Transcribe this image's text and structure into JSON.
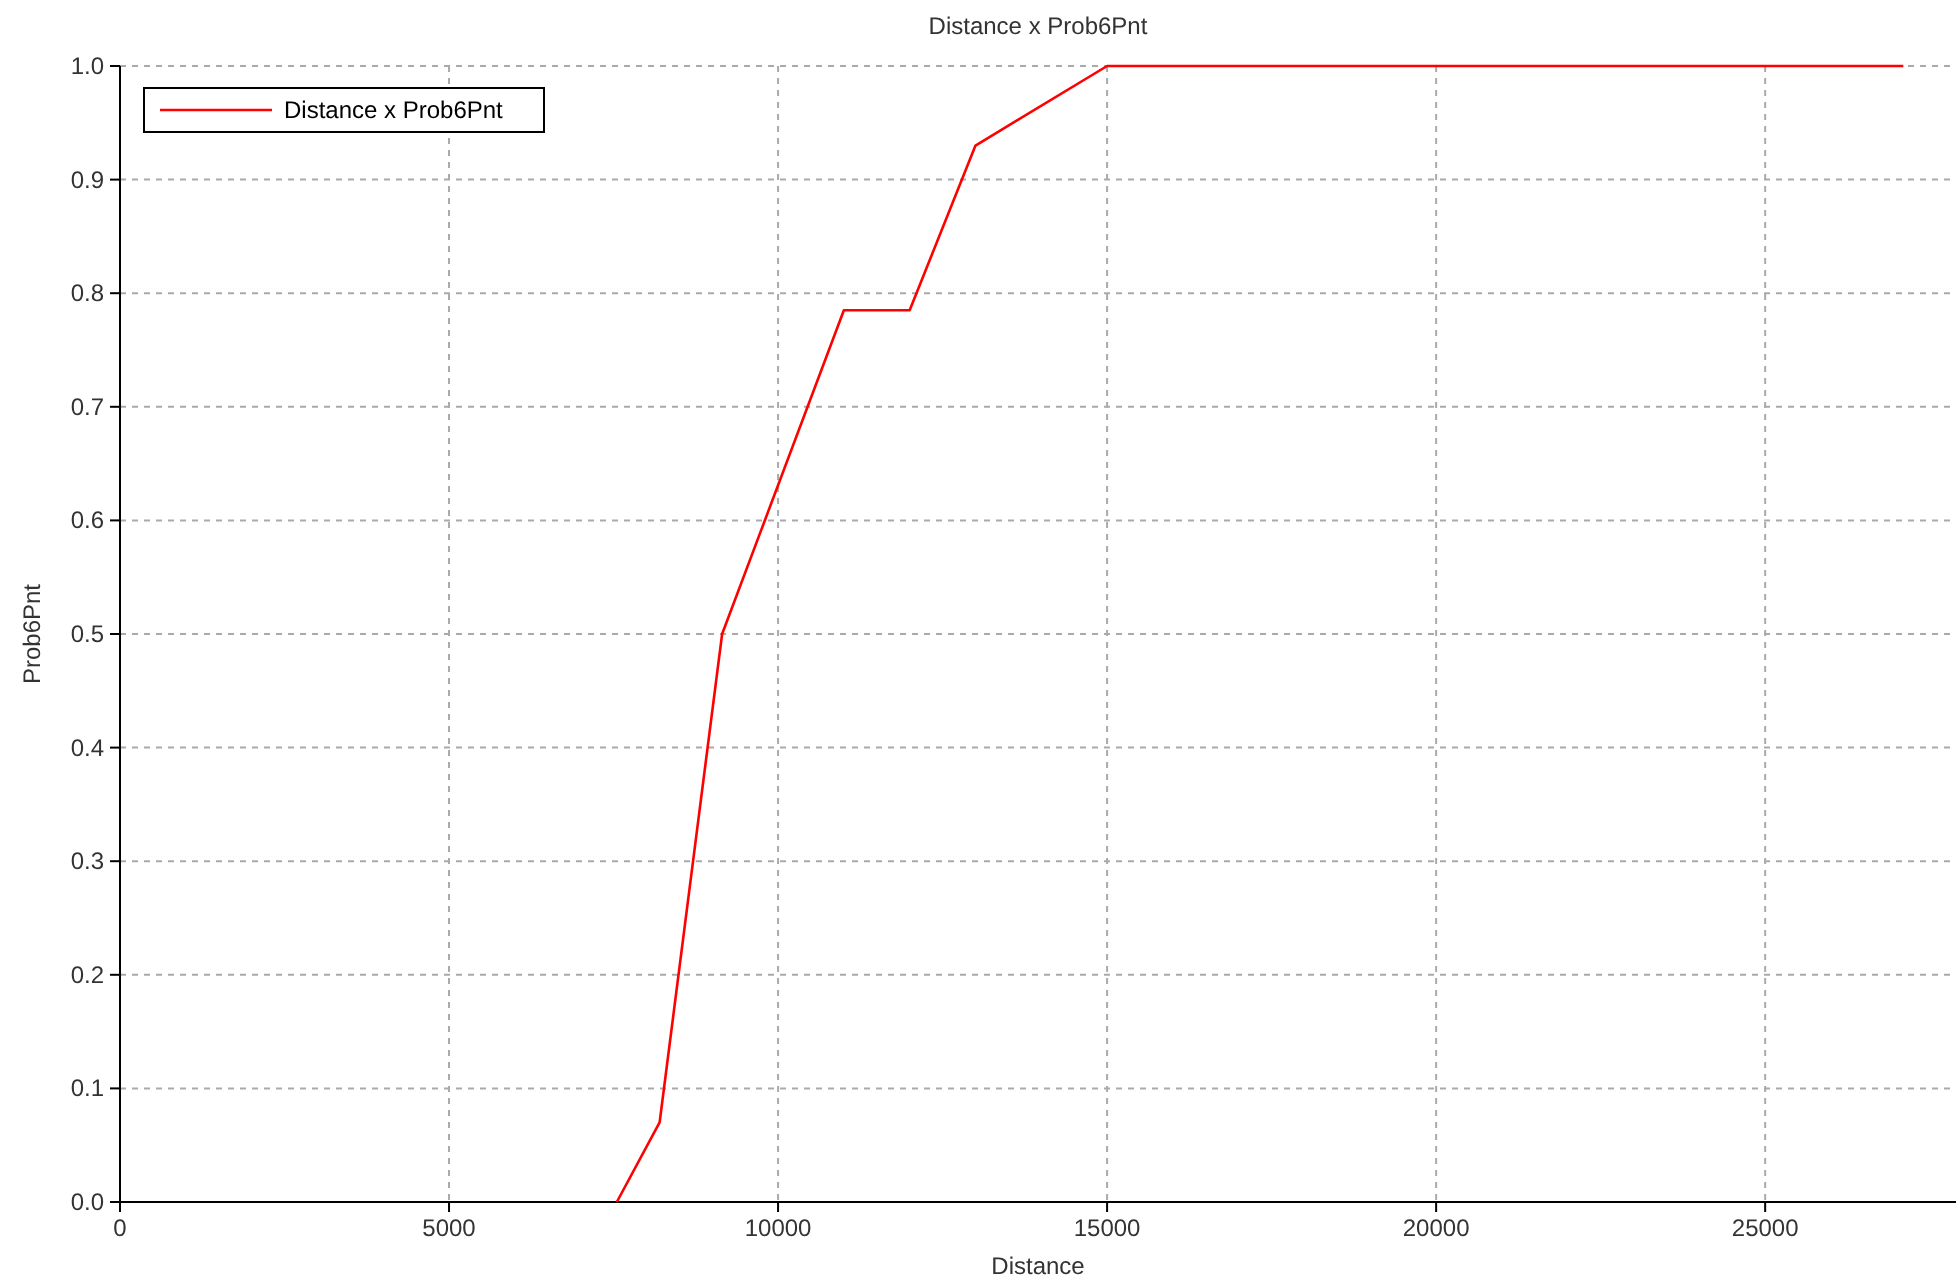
{
  "chart_data": {
    "type": "line",
    "title": "Distance x Prob6Pnt",
    "xlabel": "Distance",
    "ylabel": "Prob6Pnt",
    "x": [
      7550,
      8200,
      9150,
      11000,
      12000,
      13000,
      15000,
      27100
    ],
    "series": [
      {
        "name": "Distance x Prob6Pnt",
        "color": "#ff0000",
        "values": [
          0,
          0.07,
          0.5,
          0.785,
          0.785,
          0.93,
          1,
          1
        ]
      }
    ],
    "xlim": [
      0,
      27900
    ],
    "xticks": [
      0,
      5000,
      10000,
      15000,
      20000,
      25000
    ],
    "ylim": [
      0,
      1
    ],
    "yticks": [
      {
        "value": 0,
        "label": "0.0"
      },
      {
        "value": 0.1,
        "label": "0.1"
      },
      {
        "value": 0.2,
        "label": "0.2"
      },
      {
        "value": 0.3,
        "label": "0.3"
      },
      {
        "value": 0.4,
        "label": "0.4"
      },
      {
        "value": 0.5,
        "label": "0.5"
      },
      {
        "value": 0.6,
        "label": "0.6"
      },
      {
        "value": 0.7,
        "label": "0.7"
      },
      {
        "value": 0.8,
        "label": "0.8"
      },
      {
        "value": 0.9,
        "label": "0.9"
      },
      {
        "value": 1,
        "label": "1.0"
      }
    ],
    "grid": true,
    "legend": "top left",
    "marker": "none",
    "line_style": "solid"
  }
}
